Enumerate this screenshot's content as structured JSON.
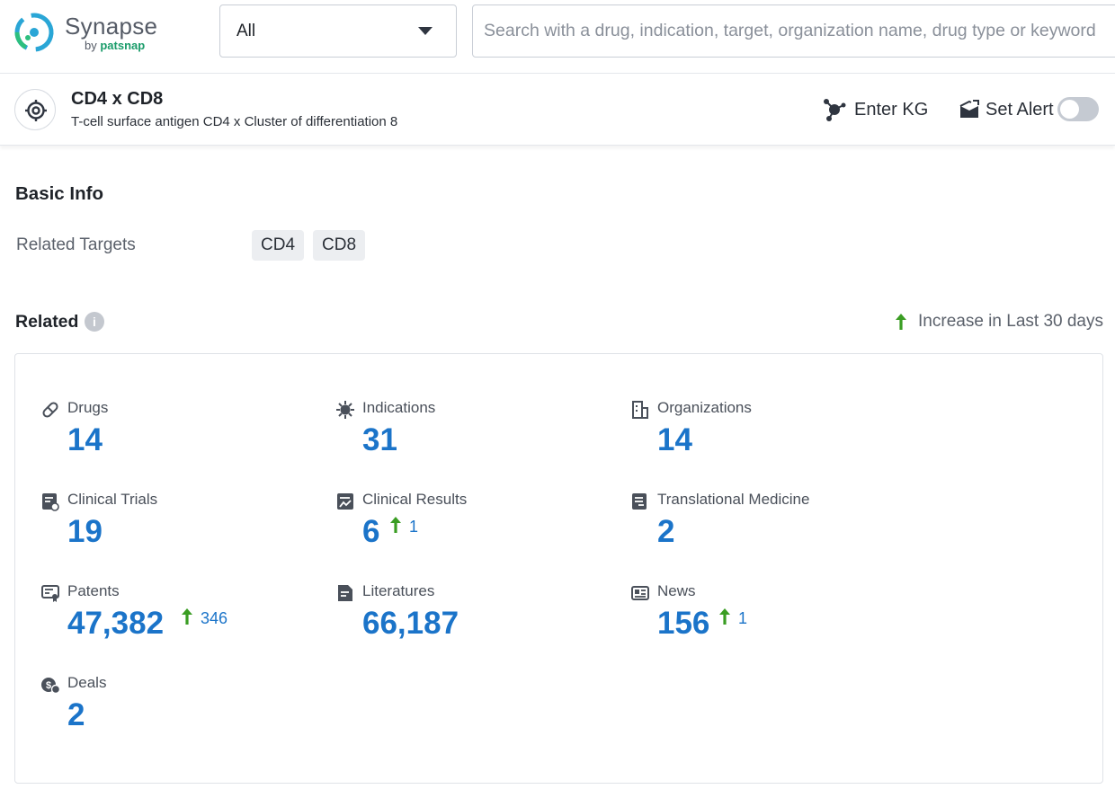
{
  "header": {
    "logo_name": "Synapse",
    "logo_by": "by",
    "logo_brand": "patsnap",
    "scope_select_value": "All",
    "search_placeholder": "Search with a drug, indication, target, organization name, drug type or keyword"
  },
  "entity": {
    "title": "CD4 x CD8",
    "subtitle": "T-cell surface antigen CD4 x Cluster of differentiation 8",
    "enter_kg_label": "Enter KG",
    "set_alert_label": "Set Alert",
    "alert_enabled": false
  },
  "basic_info": {
    "title": "Basic Info",
    "related_targets_label": "Related Targets",
    "related_targets": [
      "CD4",
      "CD8"
    ]
  },
  "related": {
    "title": "Related",
    "info_glyph": "i",
    "legend_label": "Increase in Last 30 days",
    "items": [
      {
        "label": "Drugs",
        "value": "14",
        "icon": "pill-icon"
      },
      {
        "label": "Indications",
        "value": "31",
        "icon": "virus-icon"
      },
      {
        "label": "Organizations",
        "value": "14",
        "icon": "building-icon"
      },
      {
        "label": "Clinical Trials",
        "value": "19",
        "icon": "clipboard-icon"
      },
      {
        "label": "Clinical Results",
        "value": "6",
        "delta": "1",
        "icon": "chart-report-icon"
      },
      {
        "label": "Translational Medicine",
        "value": "2",
        "icon": "document-icon"
      },
      {
        "label": "Patents",
        "value": "47,382",
        "delta": "346",
        "icon": "patent-icon"
      },
      {
        "label": "Literatures",
        "value": "66,187",
        "icon": "literature-icon"
      },
      {
        "label": "News",
        "value": "156",
        "delta": "1",
        "icon": "newspaper-icon"
      },
      {
        "label": "Deals",
        "value": "2",
        "icon": "deal-icon"
      }
    ]
  },
  "colors": {
    "accent_blue": "#1b74c9",
    "increase_green": "#3a9d23",
    "brand_green": "#1a9c6a"
  }
}
